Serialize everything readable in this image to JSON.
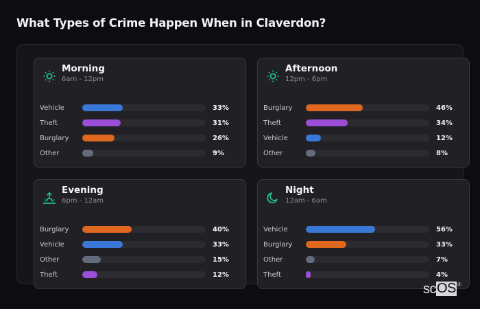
{
  "page": {
    "title": "What Types of Crime Happen When in Claverdon?"
  },
  "colors": {
    "Vehicle": "#3a78d8",
    "Theft": "#9b4fd8",
    "Burglary": "#e0681e",
    "Other": "#636b7c",
    "icon_accent": "#1fbf8f"
  },
  "cards": [
    {
      "title": "Morning",
      "subtitle": "6am - 12pm",
      "icon": "sun-icon",
      "rows": [
        {
          "label": "Vehicle",
          "value": 33,
          "value_label": "33%"
        },
        {
          "label": "Theft",
          "value": 31,
          "value_label": "31%"
        },
        {
          "label": "Burglary",
          "value": 26,
          "value_label": "26%"
        },
        {
          "label": "Other",
          "value": 9,
          "value_label": "9%"
        }
      ]
    },
    {
      "title": "Afternoon",
      "subtitle": "12pm - 6pm",
      "icon": "sun-icon",
      "rows": [
        {
          "label": "Burglary",
          "value": 46,
          "value_label": "46%"
        },
        {
          "label": "Theft",
          "value": 34,
          "value_label": "34%"
        },
        {
          "label": "Vehicle",
          "value": 12,
          "value_label": "12%"
        },
        {
          "label": "Other",
          "value": 8,
          "value_label": "8%"
        }
      ]
    },
    {
      "title": "Evening",
      "subtitle": "6pm - 12am",
      "icon": "sunset-icon",
      "rows": [
        {
          "label": "Burglary",
          "value": 40,
          "value_label": "40%"
        },
        {
          "label": "Vehicle",
          "value": 33,
          "value_label": "33%"
        },
        {
          "label": "Other",
          "value": 15,
          "value_label": "15%"
        },
        {
          "label": "Theft",
          "value": 12,
          "value_label": "12%"
        }
      ]
    },
    {
      "title": "Night",
      "subtitle": "12am - 6am",
      "icon": "moon-icon",
      "rows": [
        {
          "label": "Vehicle",
          "value": 56,
          "value_label": "56%"
        },
        {
          "label": "Burglary",
          "value": 33,
          "value_label": "33%"
        },
        {
          "label": "Other",
          "value": 7,
          "value_label": "7%"
        },
        {
          "label": "Theft",
          "value": 4,
          "value_label": "4%"
        }
      ]
    }
  ],
  "watermark": {
    "prefix": "sc",
    "boxed": "OS",
    "mark": "®"
  }
}
